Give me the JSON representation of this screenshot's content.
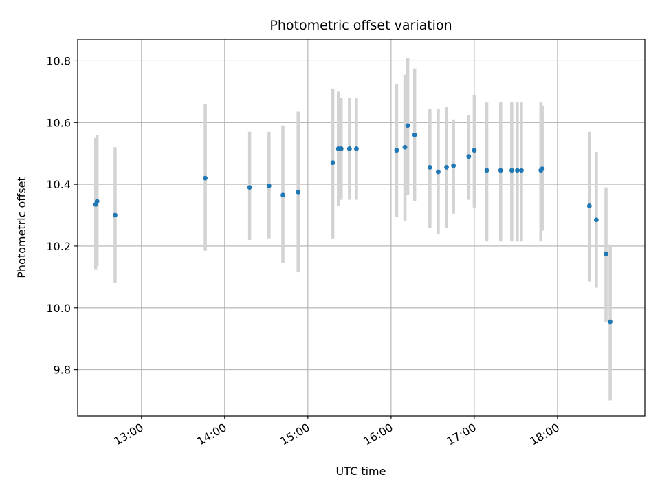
{
  "chart_data": {
    "type": "scatter",
    "title": "Photometric offset variation",
    "xlabel": "UTC time",
    "ylabel": "Photometric offset",
    "x_ticks": [
      "13:00",
      "14:00",
      "15:00",
      "16:00",
      "17:00",
      "18:00"
    ],
    "y_ticks": [
      "9.8",
      "10.0",
      "10.2",
      "10.4",
      "10.6",
      "10.8"
    ],
    "xlim": [
      "12:14",
      "19:03"
    ],
    "ylim": [
      9.65,
      10.87
    ],
    "grid": true,
    "colors": {
      "point": "#1f77b4",
      "errorbar": "#d3d3d3",
      "grid": "#b0b0b0"
    },
    "series": [
      {
        "error_bars": true,
        "points": [
          {
            "x": "12:27",
            "y": 10.335,
            "yerr_low": 10.125,
            "yerr_high": 10.55
          },
          {
            "x": "12:28",
            "y": 10.345,
            "yerr_low": 10.135,
            "yerr_high": 10.56
          },
          {
            "x": "12:41",
            "y": 10.3,
            "yerr_low": 10.08,
            "yerr_high": 10.52
          },
          {
            "x": "13:46",
            "y": 10.42,
            "yerr_low": 10.185,
            "yerr_high": 10.66
          },
          {
            "x": "14:18",
            "y": 10.39,
            "yerr_low": 10.22,
            "yerr_high": 10.57
          },
          {
            "x": "14:32",
            "y": 10.395,
            "yerr_low": 10.225,
            "yerr_high": 10.57
          },
          {
            "x": "14:42",
            "y": 10.365,
            "yerr_low": 10.145,
            "yerr_high": 10.59
          },
          {
            "x": "14:53",
            "y": 10.375,
            "yerr_low": 10.115,
            "yerr_high": 10.635
          },
          {
            "x": "15:18",
            "y": 10.47,
            "yerr_low": 10.225,
            "yerr_high": 10.71
          },
          {
            "x": "15:22",
            "y": 10.515,
            "yerr_low": 10.33,
            "yerr_high": 10.7
          },
          {
            "x": "15:24",
            "y": 10.515,
            "yerr_low": 10.35,
            "yerr_high": 10.68
          },
          {
            "x": "15:30",
            "y": 10.515,
            "yerr_low": 10.35,
            "yerr_high": 10.68
          },
          {
            "x": "15:35",
            "y": 10.515,
            "yerr_low": 10.35,
            "yerr_high": 10.68
          },
          {
            "x": "16:04",
            "y": 10.51,
            "yerr_low": 10.295,
            "yerr_high": 10.725
          },
          {
            "x": "16:10",
            "y": 10.52,
            "yerr_low": 10.28,
            "yerr_high": 10.755
          },
          {
            "x": "16:12",
            "y": 10.59,
            "yerr_low": 10.365,
            "yerr_high": 10.81
          },
          {
            "x": "16:17",
            "y": 10.56,
            "yerr_low": 10.345,
            "yerr_high": 10.775
          },
          {
            "x": "16:28",
            "y": 10.455,
            "yerr_low": 10.26,
            "yerr_high": 10.645
          },
          {
            "x": "16:34",
            "y": 10.44,
            "yerr_low": 10.24,
            "yerr_high": 10.645
          },
          {
            "x": "16:40",
            "y": 10.455,
            "yerr_low": 10.26,
            "yerr_high": 10.65
          },
          {
            "x": "16:45",
            "y": 10.46,
            "yerr_low": 10.305,
            "yerr_high": 10.61
          },
          {
            "x": "16:56",
            "y": 10.49,
            "yerr_low": 10.35,
            "yerr_high": 10.625
          },
          {
            "x": "17:00",
            "y": 10.51,
            "yerr_low": 10.325,
            "yerr_high": 10.69
          },
          {
            "x": "17:09",
            "y": 10.445,
            "yerr_low": 10.215,
            "yerr_high": 10.665
          },
          {
            "x": "17:19",
            "y": 10.445,
            "yerr_low": 10.215,
            "yerr_high": 10.665
          },
          {
            "x": "17:27",
            "y": 10.445,
            "yerr_low": 10.215,
            "yerr_high": 10.665
          },
          {
            "x": "17:31",
            "y": 10.445,
            "yerr_low": 10.215,
            "yerr_high": 10.665
          },
          {
            "x": "17:34",
            "y": 10.445,
            "yerr_low": 10.215,
            "yerr_high": 10.665
          },
          {
            "x": "17:48",
            "y": 10.445,
            "yerr_low": 10.215,
            "yerr_high": 10.665
          },
          {
            "x": "17:49",
            "y": 10.45,
            "yerr_low": 10.25,
            "yerr_high": 10.655
          },
          {
            "x": "18:23",
            "y": 10.33,
            "yerr_low": 10.085,
            "yerr_high": 10.57
          },
          {
            "x": "18:28",
            "y": 10.285,
            "yerr_low": 10.065,
            "yerr_high": 10.505
          },
          {
            "x": "18:35",
            "y": 10.175,
            "yerr_low": 9.955,
            "yerr_high": 10.39
          },
          {
            "x": "18:38",
            "y": 9.955,
            "yerr_low": 9.7,
            "yerr_high": 10.205
          }
        ]
      }
    ]
  }
}
